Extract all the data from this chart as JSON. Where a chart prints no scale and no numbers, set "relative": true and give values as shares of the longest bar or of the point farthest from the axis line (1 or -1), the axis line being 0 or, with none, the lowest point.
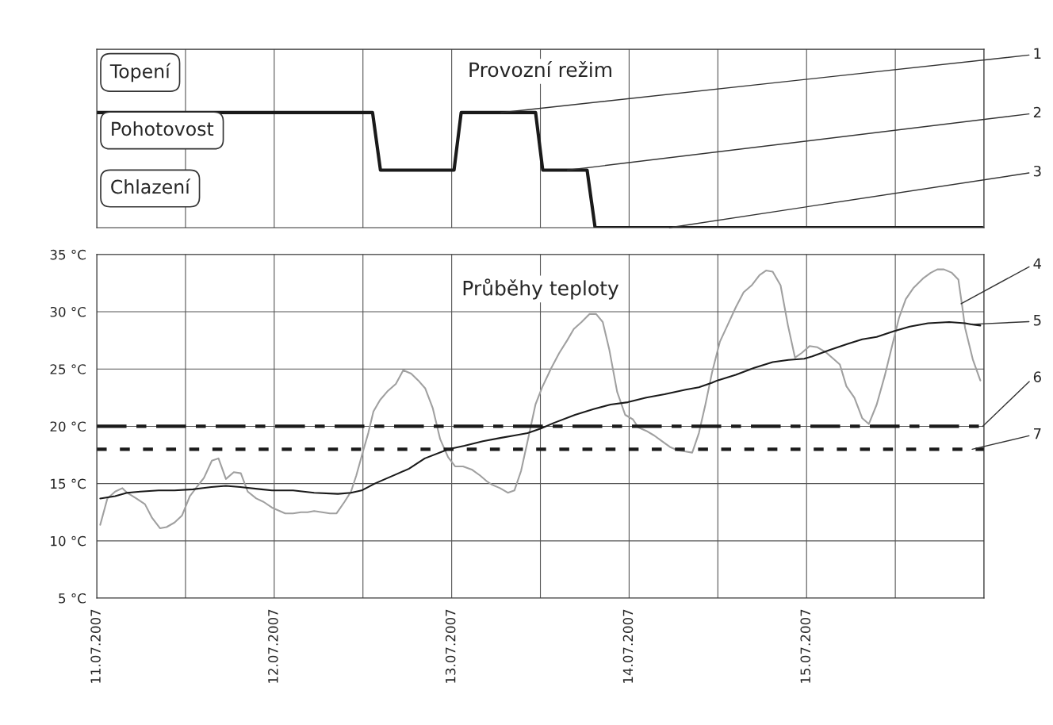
{
  "chart_data": [
    {
      "type": "line",
      "title": "Provozní režim",
      "relative": true,
      "grid": "x",
      "tick_labels": false,
      "xlim": [
        "2007-07-11T00:00",
        "2007-07-16T00:00"
      ],
      "series": [
        {
          "color": "#1a1a1a",
          "x": [
            "2007-07-11T00:00",
            "2007-07-12T13:18",
            "2007-07-12T14:22",
            "2007-07-13T00:19",
            "2007-07-13T01:17",
            "2007-07-13T11:21",
            "2007-07-13T12:19",
            "2007-07-13T18:19",
            "2007-07-13T19:24",
            "2007-07-15T23:47"
          ],
          "values": [
            1,
            1,
            0.5,
            0.5,
            1,
            1,
            0.5,
            0.5,
            0,
            0
          ]
        }
      ],
      "annotations": [
        "Topení",
        "Pohotovost",
        "Chlazení",
        {
          "text": "1",
          "x": "2007-07-13T06:39",
          "y": 1
        },
        {
          "text": "2",
          "x": "2007-07-13T15:39",
          "y": 0.5
        },
        {
          "text": "3",
          "x": "2007-07-14T05:28",
          "y": 0
        }
      ]
    },
    {
      "type": "line",
      "title": "Průběhy teploty",
      "grid": true,
      "xlim": [
        "2007-07-11T00:00",
        "2007-07-16T00:00"
      ],
      "ylim": [
        5,
        35
      ],
      "yticks": [
        {
          "value": 5,
          "label": "5 °C"
        },
        {
          "value": 10,
          "label": "10 °C"
        },
        {
          "value": 15,
          "label": "15 °C"
        },
        {
          "value": 20,
          "label": "20 °C"
        },
        {
          "value": 25,
          "label": "25 °C"
        },
        {
          "value": 30,
          "label": "30 °C"
        },
        {
          "value": 35,
          "label": "35 °C"
        }
      ],
      "xticks": [
        {
          "value": "2007-07-11",
          "label": "11.07.2007"
        },
        {
          "value": "2007-07-11T12:00",
          "label": null
        },
        {
          "value": "2007-07-12",
          "label": "12.07.2007"
        },
        {
          "value": "2007-07-12T12:00",
          "label": null
        },
        {
          "value": "2007-07-13",
          "label": "13.07.2007"
        },
        {
          "value": "2007-07-13T12:00",
          "label": null
        },
        {
          "value": "2007-07-14",
          "label": "14.07.2007"
        },
        {
          "value": "2007-07-14T12:00",
          "label": null
        },
        {
          "value": "2007-07-15",
          "label": "15.07.2007"
        },
        {
          "value": "2007-07-15T12:00",
          "label": null
        },
        {
          "value": "2007-07-16",
          "label": null
        }
      ],
      "series": [
        {
          "color": "#a0a0a0",
          "x": [
            "2007-07-11T00:28",
            "2007-07-11T01:26",
            "2007-07-11T02:29",
            "2007-07-11T03:28",
            "2007-07-11T04:06",
            "2007-07-11T05:21",
            "2007-07-11T06:31",
            "2007-07-11T07:29",
            "2007-07-11T08:33",
            "2007-07-11T09:26",
            "2007-07-11T10:31",
            "2007-07-11T11:31",
            "2007-07-11T12:35",
            "2007-07-11T13:32",
            "2007-07-11T14:30",
            "2007-07-11T15:34",
            "2007-07-11T16:28",
            "2007-07-11T17:28",
            "2007-07-11T18:32",
            "2007-07-11T19:29",
            "2007-07-11T20:25",
            "2007-07-11T21:34",
            "2007-07-11T22:34",
            "2007-07-11T23:42",
            "2007-07-12T01:29",
            "2007-07-12T02:33",
            "2007-07-12T03:37",
            "2007-07-12T04:31",
            "2007-07-12T05:24",
            "2007-07-12T06:28",
            "2007-07-12T07:32",
            "2007-07-12T08:26",
            "2007-07-12T09:30",
            "2007-07-12T10:23",
            "2007-07-12T11:06",
            "2007-07-12T12:00",
            "2007-07-12T12:43",
            "2007-07-12T13:25",
            "2007-07-12T14:19",
            "2007-07-12T15:23",
            "2007-07-12T16:27",
            "2007-07-12T17:27",
            "2007-07-12T18:31",
            "2007-07-12T19:29",
            "2007-07-12T20:26",
            "2007-07-12T21:26",
            "2007-07-12T22:26",
            "2007-07-12T23:31",
            "2007-07-13T00:28",
            "2007-07-13T01:32",
            "2007-07-13T02:47",
            "2007-07-13T03:51",
            "2007-07-13T04:45",
            "2007-07-13T05:28",
            "2007-07-13T06:32",
            "2007-07-13T07:36",
            "2007-07-13T08:29",
            "2007-07-13T09:23",
            "2007-07-13T10:16",
            "2007-07-13T11:20",
            "2007-07-13T12:14",
            "2007-07-13T13:29",
            "2007-07-13T14:33",
            "2007-07-13T15:37",
            "2007-07-13T16:31",
            "2007-07-13T17:34",
            "2007-07-13T18:38",
            "2007-07-13T19:32",
            "2007-07-13T20:26",
            "2007-07-13T21:19",
            "2007-07-13T22:23",
            "2007-07-13T23:28",
            "2007-07-14T00:31",
            "2007-07-14T01:14",
            "2007-07-14T02:19",
            "2007-07-14T03:23",
            "2007-07-14T04:26",
            "2007-07-14T05:31",
            "2007-07-14T06:35",
            "2007-07-14T07:39",
            "2007-07-14T08:32",
            "2007-07-14T09:26",
            "2007-07-14T10:19",
            "2007-07-14T11:13",
            "2007-07-14T12:17",
            "2007-07-14T13:22",
            "2007-07-14T14:26",
            "2007-07-14T15:29",
            "2007-07-14T16:34",
            "2007-07-14T17:38",
            "2007-07-14T18:31",
            "2007-07-14T19:25",
            "2007-07-14T20:29",
            "2007-07-14T21:29",
            "2007-07-14T22:26",
            "2007-07-14T23:20",
            "2007-07-15T00:24",
            "2007-07-15T01:28",
            "2007-07-15T02:32",
            "2007-07-15T03:37",
            "2007-07-15T04:30",
            "2007-07-15T05:23",
            "2007-07-15T06:28",
            "2007-07-15T07:32",
            "2007-07-15T08:25",
            "2007-07-15T09:29",
            "2007-07-15T10:34",
            "2007-07-15T11:38",
            "2007-07-15T12:31",
            "2007-07-15T13:25",
            "2007-07-15T14:29",
            "2007-07-15T15:44",
            "2007-07-15T16:48",
            "2007-07-15T17:41",
            "2007-07-15T18:35",
            "2007-07-15T19:39",
            "2007-07-15T20:32",
            "2007-07-15T21:04",
            "2007-07-15T21:26",
            "2007-07-15T22:30",
            "2007-07-15T23:30"
          ],
          "values": [
            11.4,
            13.7,
            14.3,
            14.6,
            14.2,
            13.7,
            13.2,
            12.0,
            11.1,
            11.2,
            11.6,
            12.2,
            13.9,
            14.7,
            15.5,
            17.0,
            17.2,
            15.4,
            16.0,
            15.9,
            14.3,
            13.7,
            13.4,
            12.9,
            12.4,
            12.4,
            12.5,
            12.5,
            12.6,
            12.5,
            12.4,
            12.4,
            13.4,
            14.3,
            15.7,
            17.8,
            19.4,
            21.3,
            22.3,
            23.1,
            23.7,
            24.9,
            24.6,
            24.0,
            23.3,
            21.6,
            18.9,
            17.3,
            16.5,
            16.5,
            16.2,
            15.7,
            15.2,
            14.9,
            14.6,
            14.2,
            14.4,
            16.1,
            18.7,
            21.9,
            23.4,
            25.1,
            26.4,
            27.5,
            28.5,
            29.1,
            29.8,
            29.8,
            29.1,
            26.7,
            23.0,
            21.0,
            20.6,
            19.9,
            19.6,
            19.2,
            18.7,
            18.2,
            17.9,
            17.8,
            17.7,
            19.4,
            21.9,
            24.7,
            27.4,
            28.9,
            30.4,
            31.7,
            32.3,
            33.2,
            33.6,
            33.5,
            32.3,
            28.8,
            26.0,
            26.4,
            27.0,
            26.9,
            26.5,
            25.9,
            25.4,
            23.5,
            22.5,
            20.7,
            20.2,
            21.9,
            24.4,
            27.2,
            29.5,
            31.1,
            32.1,
            32.9,
            33.4,
            33.7,
            33.7,
            33.4,
            32.8,
            30.4,
            28.6,
            25.8,
            24.0
          ]
        },
        {
          "color": "#1a1a1a",
          "x": [
            "2007-07-11T00:28",
            "2007-07-11T02:29",
            "2007-07-11T04:06",
            "2007-07-11T05:53",
            "2007-07-11T08:22",
            "2007-07-11T10:31",
            "2007-07-11T13:01",
            "2007-07-11T15:30",
            "2007-07-11T17:28",
            "2007-07-11T19:25",
            "2007-07-11T22:16",
            "2007-07-11T23:42",
            "2007-07-12T02:33",
            "2007-07-12T05:24",
            "2007-07-12T08:37",
            "2007-07-12T10:23",
            "2007-07-12T11:49",
            "2007-07-12T13:36",
            "2007-07-12T15:01",
            "2007-07-12T16:27",
            "2007-07-12T18:14",
            "2007-07-12T20:22",
            "2007-07-12T23:35",
            "2007-07-13T01:43",
            "2007-07-13T04:13",
            "2007-07-13T06:43",
            "2007-07-13T08:29",
            "2007-07-13T10:16",
            "2007-07-13T12:03",
            "2007-07-13T13:50",
            "2007-07-13T16:41",
            "2007-07-13T19:11",
            "2007-07-13T21:30",
            "2007-07-13T23:49",
            "2007-07-14T02:19",
            "2007-07-14T04:48",
            "2007-07-14T07:39",
            "2007-07-14T09:26",
            "2007-07-14T11:13",
            "2007-07-14T11:56",
            "2007-07-14T14:26",
            "2007-07-14T16:55",
            "2007-07-14T19:25",
            "2007-07-14T21:33",
            "2007-07-14T23:41",
            "2007-07-15T00:46",
            "2007-07-15T03:16",
            "2007-07-15T05:34",
            "2007-07-15T07:32",
            "2007-07-15T09:29",
            "2007-07-15T11:49",
            "2007-07-15T13:57",
            "2007-07-15T16:26",
            "2007-07-15T19:17",
            "2007-07-15T21:26",
            "2007-07-15T22:19",
            "2007-07-15T23:30"
          ],
          "values": [
            13.7,
            13.9,
            14.2,
            14.3,
            14.4,
            14.4,
            14.5,
            14.7,
            14.8,
            14.7,
            14.5,
            14.4,
            14.4,
            14.2,
            14.1,
            14.2,
            14.4,
            15.0,
            15.4,
            15.8,
            16.3,
            17.2,
            18.0,
            18.3,
            18.7,
            19.0,
            19.2,
            19.4,
            19.8,
            20.3,
            21.0,
            21.5,
            21.9,
            22.1,
            22.5,
            22.8,
            23.2,
            23.4,
            23.8,
            24.0,
            24.5,
            25.1,
            25.6,
            25.8,
            25.9,
            26.1,
            26.7,
            27.2,
            27.6,
            27.8,
            28.3,
            28.7,
            29.0,
            29.1,
            29.0,
            28.9,
            28.8
          ]
        }
      ],
      "ref_lines": [
        {
          "axis": "y",
          "value": 20,
          "color": "#1a1a1a",
          "line_style": "dashed"
        },
        {
          "axis": "y",
          "value": 18,
          "color": "#1a1a1a",
          "line_style": "dotted"
        }
      ],
      "annotations": [
        {
          "text": "4",
          "x": "2007-07-15T20:54",
          "y": 30.7
        },
        {
          "text": "5",
          "x": "2007-07-15T22:19",
          "y": 28.9
        },
        {
          "text": "6",
          "x": "2007-07-15T23:49",
          "y": 20
        },
        {
          "text": "7",
          "x": "2007-07-15T22:24",
          "y": 18
        }
      ]
    }
  ]
}
